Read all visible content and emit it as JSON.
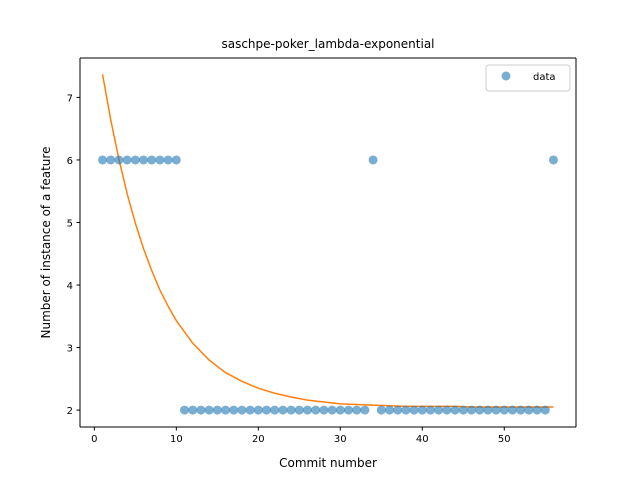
{
  "chart_data": {
    "type": "scatter",
    "title": "saschpe-poker_lambda-exponential",
    "xlabel": "Commit number",
    "ylabel": "Number of instance of a feature",
    "xlim": [
      -1.75,
      58.75
    ],
    "ylim": [
      1.73,
      7.63
    ],
    "xticks": [
      0,
      10,
      20,
      30,
      40,
      50
    ],
    "yticks": [
      2,
      3,
      4,
      5,
      6,
      7
    ],
    "grid": false,
    "legend": {
      "position": "top-right",
      "entries": [
        "data"
      ]
    },
    "series": [
      {
        "name": "data",
        "kind": "scatter",
        "color": "#1f77b4",
        "x": [
          1,
          2,
          3,
          4,
          5,
          6,
          7,
          8,
          9,
          10,
          11,
          12,
          13,
          14,
          15,
          16,
          17,
          18,
          19,
          20,
          21,
          22,
          23,
          24,
          25,
          26,
          27,
          28,
          29,
          30,
          31,
          32,
          33,
          34,
          35,
          36,
          37,
          38,
          39,
          40,
          41,
          42,
          43,
          44,
          45,
          46,
          47,
          48,
          49,
          50,
          51,
          52,
          53,
          54,
          55,
          56
        ],
        "y": [
          6,
          6,
          6,
          6,
          6,
          6,
          6,
          6,
          6,
          6,
          2,
          2,
          2,
          2,
          2,
          2,
          2,
          2,
          2,
          2,
          2,
          2,
          2,
          2,
          2,
          2,
          2,
          2,
          2,
          2,
          2,
          2,
          2,
          6,
          2,
          2,
          2,
          2,
          2,
          2,
          2,
          2,
          2,
          2,
          2,
          2,
          2,
          2,
          2,
          2,
          2,
          2,
          2,
          2,
          2,
          6
        ]
      },
      {
        "kind": "line",
        "color": "#ff7f0e",
        "x": [
          1,
          2,
          3,
          4,
          5,
          6,
          7,
          8,
          9,
          10,
          12,
          14,
          16,
          18,
          20,
          22,
          24,
          26,
          28,
          30,
          32,
          34,
          36,
          38,
          40,
          42,
          44,
          46,
          48,
          50,
          52,
          54,
          56
        ],
        "y": [
          7.37,
          6.64,
          6.01,
          5.46,
          4.99,
          4.58,
          4.23,
          3.92,
          3.66,
          3.43,
          3.07,
          2.8,
          2.6,
          2.46,
          2.35,
          2.27,
          2.21,
          2.16,
          2.13,
          2.1,
          2.09,
          2.08,
          2.07,
          2.06,
          2.06,
          2.06,
          2.06,
          2.05,
          2.05,
          2.05,
          2.05,
          2.05,
          2.05
        ]
      }
    ]
  }
}
